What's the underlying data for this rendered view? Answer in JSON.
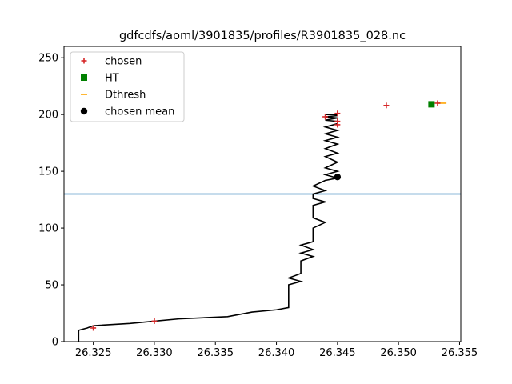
{
  "chart_data": {
    "type": "line",
    "title": "gdfcdfs/aoml/3901835/profiles/R3901835_028.nc",
    "xlabel": "",
    "ylabel": "",
    "xlim": [
      26.3226,
      26.3551
    ],
    "ylim": [
      0,
      260
    ],
    "x_ticks": [
      26.325,
      26.33,
      26.335,
      26.34,
      26.345,
      26.35,
      26.355
    ],
    "x_tick_labels": [
      "26.325",
      "26.330",
      "26.335",
      "26.340",
      "26.345",
      "26.350",
      "26.355"
    ],
    "y_ticks": [
      0,
      50,
      100,
      150,
      200,
      250
    ],
    "y_tick_labels": [
      "0",
      "50",
      "100",
      "150",
      "200",
      "250"
    ],
    "grid": false,
    "legend_placement": "top-left",
    "colors": {
      "profile": "#000000",
      "chosen": "#d62728",
      "ht": "#008000",
      "dthresh": "#ffa500",
      "mean": "#000000",
      "hline": "#1f77b4"
    },
    "legend": [
      {
        "label": "chosen",
        "marker": "plus",
        "color": "#d62728"
      },
      {
        "label": "HT",
        "marker": "square",
        "color": "#008000"
      },
      {
        "label": "Dthresh",
        "marker": "hline",
        "color": "#ffa500"
      },
      {
        "label": "chosen mean",
        "marker": "circle",
        "color": "#000000"
      }
    ],
    "profile": {
      "x": [
        26.3238,
        26.3238,
        26.3245,
        26.325,
        26.328,
        26.33,
        26.332,
        26.336,
        26.338,
        26.34,
        26.341,
        26.341,
        26.342,
        26.341,
        26.342,
        26.342,
        26.343,
        26.342,
        26.343,
        26.342,
        26.343,
        26.343,
        26.344,
        26.343,
        26.343,
        26.344,
        26.343,
        26.343,
        26.344,
        26.343,
        26.344,
        26.345,
        26.344,
        26.345,
        26.344,
        26.345,
        26.344,
        26.345,
        26.344,
        26.345,
        26.344,
        26.345,
        26.344,
        26.345,
        26.344,
        26.345,
        26.345,
        26.344,
        26.345,
        26.344,
        26.345,
        26.345,
        26.344,
        26.345
      ],
      "y": [
        0,
        10,
        12,
        14,
        16,
        18,
        20,
        22,
        26,
        28,
        30,
        50,
        53,
        56,
        60,
        71,
        75,
        78,
        81,
        85,
        88,
        100,
        105,
        109,
        120,
        123,
        126,
        130,
        133,
        137,
        142,
        144,
        147,
        150,
        153,
        158,
        163,
        166,
        170,
        174,
        177,
        180,
        183,
        186,
        189,
        192,
        194,
        195,
        197,
        198,
        199,
        200,
        200,
        200
      ]
    },
    "chosen": {
      "x": [
        26.325,
        26.33,
        26.344,
        26.345,
        26.345,
        26.345,
        26.349,
        26.3532
      ],
      "y": [
        12,
        18,
        198,
        201,
        194,
        191,
        208,
        210
      ]
    },
    "ht": {
      "x": [
        26.3527
      ],
      "y": [
        209
      ]
    },
    "dthresh": {
      "x": [
        26.3536
      ],
      "y": [
        210
      ]
    },
    "chosen_mean": {
      "x": [
        26.345
      ],
      "y": [
        145
      ]
    },
    "hline_y": 130
  }
}
